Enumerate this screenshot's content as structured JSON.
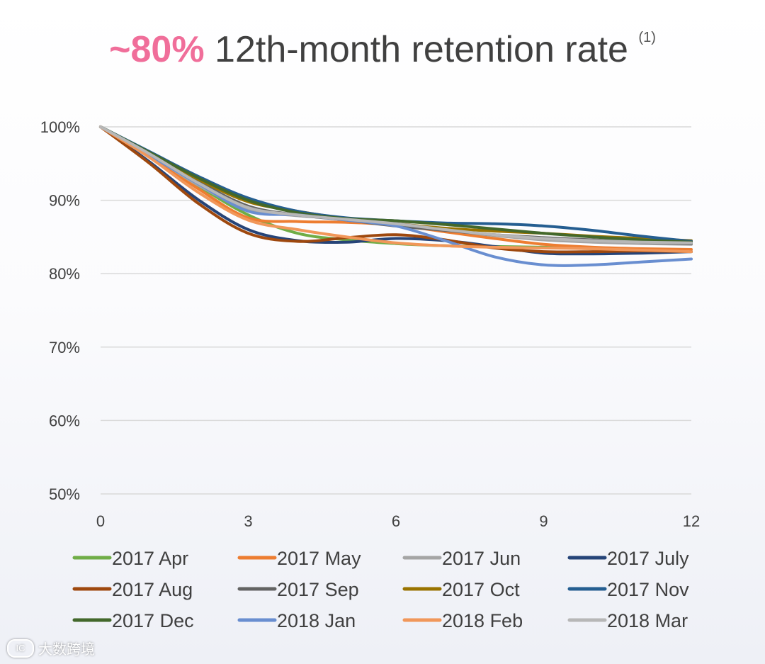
{
  "title": {
    "highlight": "~80%",
    "text": "12th-month retention rate",
    "footnote": "(1)"
  },
  "chart_data": {
    "type": "line",
    "title": "~80% 12th-month retention rate",
    "xlabel": "",
    "ylabel": "",
    "xlim": [
      0,
      12
    ],
    "ylim": [
      50,
      100
    ],
    "x_ticks": [
      0,
      3,
      6,
      9,
      12
    ],
    "y_ticks": [
      50,
      60,
      70,
      80,
      90,
      100
    ],
    "y_tick_labels": [
      "50%",
      "60%",
      "70%",
      "80%",
      "90%",
      "100%"
    ],
    "grid": true,
    "legend_position": "bottom",
    "x": [
      0,
      1,
      2,
      3,
      4,
      5,
      6,
      7,
      8,
      9,
      10,
      11,
      12
    ],
    "series": [
      {
        "name": "2017 Apr",
        "color": "#70ad47",
        "values": [
          100,
          96.2,
          91.9,
          88.0,
          85.5,
          84.6,
          84.1,
          83.8,
          83.7,
          83.6,
          83.4,
          83.2,
          83.0
        ]
      },
      {
        "name": "2017 May",
        "color": "#ed7d31",
        "values": [
          100,
          96.0,
          91.5,
          87.6,
          87.1,
          87.0,
          86.6,
          85.7,
          84.8,
          84.0,
          83.6,
          83.4,
          83.3
        ]
      },
      {
        "name": "2017 Jun",
        "color": "#a5a5a5",
        "values": [
          100,
          96.2,
          92.0,
          88.8,
          87.9,
          87.5,
          86.9,
          86.0,
          85.2,
          84.6,
          84.3,
          84.1,
          84.0
        ]
      },
      {
        "name": "2017 July",
        "color": "#264478",
        "values": [
          100,
          95.2,
          90.0,
          86.0,
          84.5,
          84.3,
          84.8,
          84.5,
          83.7,
          82.8,
          82.7,
          82.8,
          83.0
        ]
      },
      {
        "name": "2017 Aug",
        "color": "#9e480e",
        "values": [
          100,
          95.0,
          89.5,
          85.5,
          84.4,
          84.9,
          85.3,
          84.6,
          83.5,
          83.0,
          83.0,
          83.1,
          83.0
        ]
      },
      {
        "name": "2017 Sep",
        "color": "#636363",
        "values": [
          100,
          96.4,
          92.5,
          89.2,
          88.0,
          87.3,
          86.5,
          85.9,
          85.3,
          84.9,
          84.6,
          84.3,
          84.1
        ]
      },
      {
        "name": "2017 Oct",
        "color": "#997300",
        "values": [
          100,
          96.5,
          92.8,
          89.8,
          88.5,
          87.5,
          86.8,
          86.2,
          85.8,
          85.5,
          85.1,
          84.8,
          84.5
        ]
      },
      {
        "name": "2017 Nov",
        "color": "#255e91",
        "values": [
          100,
          96.6,
          93.2,
          90.3,
          88.5,
          87.6,
          87.2,
          86.9,
          86.8,
          86.5,
          85.9,
          85.1,
          84.4
        ]
      },
      {
        "name": "2017 Dec",
        "color": "#43682b",
        "values": [
          100,
          96.5,
          93.0,
          90.0,
          88.3,
          87.5,
          87.2,
          86.7,
          86.1,
          85.5,
          85.0,
          84.6,
          84.3
        ]
      },
      {
        "name": "2018 Jan",
        "color": "#698ed0",
        "values": [
          100,
          96.1,
          92.2,
          88.5,
          88.0,
          87.3,
          86.5,
          84.5,
          82.3,
          81.2,
          81.2,
          81.6,
          82.0
        ]
      },
      {
        "name": "2018 Feb",
        "color": "#f1975a",
        "values": [
          100,
          95.8,
          91.0,
          87.3,
          86.0,
          85.0,
          84.2,
          83.8,
          83.6,
          83.5,
          83.4,
          83.2,
          83.0
        ]
      },
      {
        "name": "2018 Mar",
        "color": "#b7b7b7",
        "values": [
          100,
          96.3,
          92.3,
          89.0,
          88.0,
          87.4,
          86.8,
          86.0,
          85.3,
          84.8,
          84.5,
          84.3,
          84.2
        ]
      }
    ]
  },
  "watermark": {
    "icon_text": "IC",
    "text": "大数跨境"
  }
}
